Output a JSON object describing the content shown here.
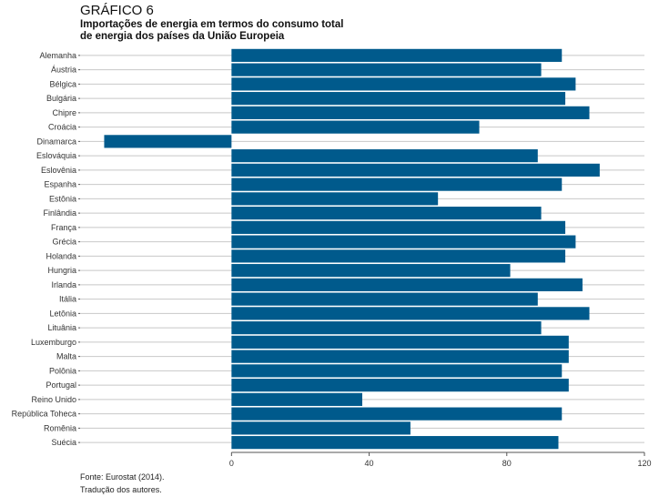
{
  "header": {
    "label": "GRÁFICO 6",
    "title_line1": "Importações de energia em termos do consumo total",
    "title_line2": "de energia dos países da União Europeia"
  },
  "footer": {
    "source": "Fonte: Eurostat (2014).",
    "translation": "Tradução dos autores."
  },
  "colors": {
    "bar": "#005a8c",
    "grid": "#c8c8c8",
    "axis": "#555555"
  },
  "chart_data": {
    "type": "bar",
    "orientation": "horizontal",
    "title": "Importações de energia em termos do consumo total de energia dos países da União Europeia",
    "xlabel": "",
    "ylabel": "",
    "xlim": [
      -44,
      120
    ],
    "xticks": [
      0,
      40,
      80,
      120
    ],
    "grid": "horizontal lines per category",
    "categories": [
      "Alemanha",
      "Áustria",
      "Bélgica",
      "Bulgária",
      "Chipre",
      "Croácia",
      "Dinamarca",
      "Eslováquia",
      "Eslovênia",
      "Espanha",
      "Estônia",
      "Finlândia",
      "França",
      "Grécia",
      "Holanda",
      "Hungria",
      "Irlanda",
      "Itália",
      "Letônia",
      "Lituânia",
      "Luxemburgo",
      "Malta",
      "Polônia",
      "Portugal",
      "Reino Unido",
      "República Toheca",
      "Romênia",
      "Suécia"
    ],
    "values": [
      96,
      90,
      100,
      97,
      104,
      72,
      -37,
      89,
      107,
      96,
      60,
      90,
      97,
      100,
      97,
      81,
      102,
      89,
      104,
      90,
      98,
      98,
      96,
      98,
      38,
      96,
      52,
      95
    ]
  }
}
